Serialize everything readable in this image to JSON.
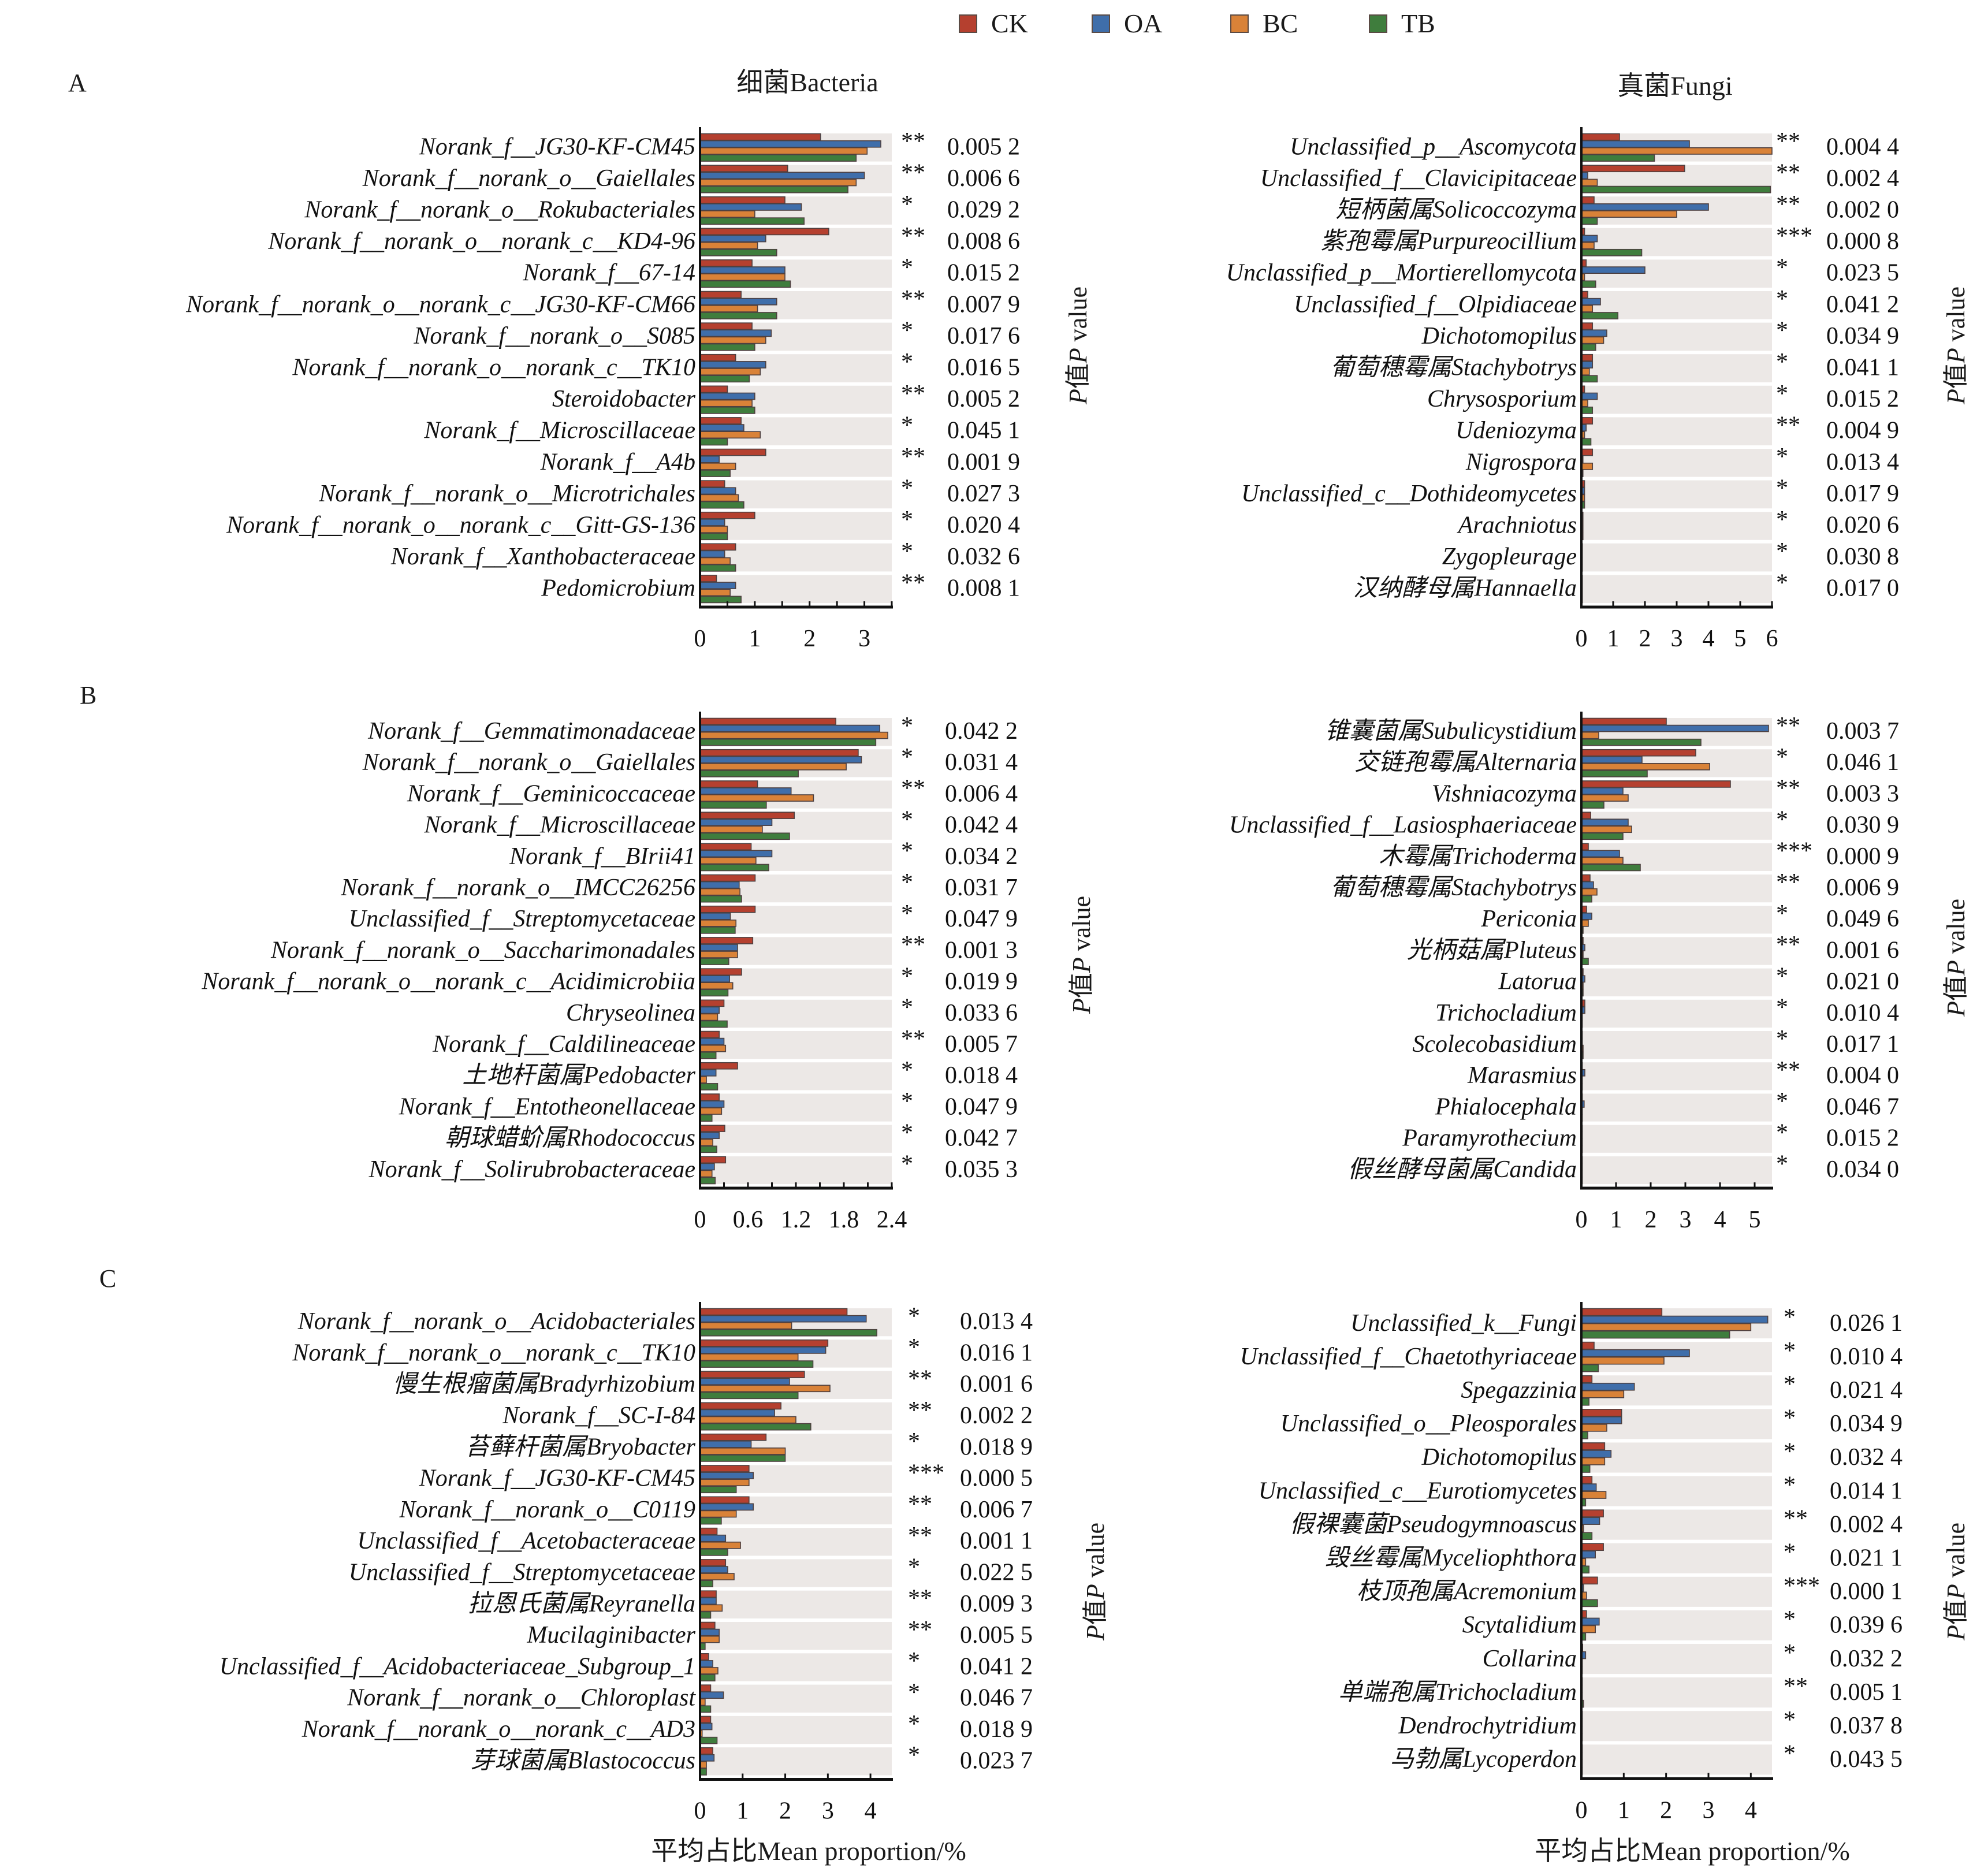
{
  "legend": [
    {
      "name": "CK",
      "color": "#b5402f"
    },
    {
      "name": "OA",
      "color": "#3f6eaa"
    },
    {
      "name": "BC",
      "color": "#d98238"
    },
    {
      "name": "TB",
      "color": "#3f7d3d"
    }
  ],
  "colors": {
    "bar_outline": "#4e4040",
    "row_band": "#ece8e6",
    "axis": "#111111"
  },
  "column_titles": {
    "bacteria": "细菌Bacteria",
    "fungi": "真菌Fungi"
  },
  "panel_letters": [
    "A",
    "B",
    "C"
  ],
  "pvalue_axis_title": {
    "prefix": "P",
    "middle": "值",
    "italic": "P",
    "suffix": " value"
  },
  "xlabel": "平均占比Mean proportion/%",
  "chart_data": [
    {
      "id": "A-bacteria",
      "panel": "A",
      "type": "bar",
      "orientation": "horizontal",
      "title": "细菌Bacteria",
      "xlim": [
        0,
        3.5
      ],
      "xticks": [
        0,
        1,
        2,
        3
      ],
      "minor_tick_step": 0.5,
      "xlabel": "",
      "series_names": [
        "CK",
        "OA",
        "BC",
        "TB"
      ],
      "categories": [
        "Norank_f__JG30-KF-CM45",
        "Norank_f__norank_o__Gaiellales",
        "Norank_f__norank_o__Rokubacteriales",
        "Norank_f__norank_o__norank_c__KD4-96",
        "Norank_f__67-14",
        "Norank_f__norank_o__norank_c__JG30-KF-CM66",
        "Norank_f__norank_o__S085",
        "Norank_f__norank_o__norank_c__TK10",
        "Steroidobacter",
        "Norank_f__Microscillaceae",
        "Norank_f__A4b",
        "Norank_f__norank_o__Microtrichales",
        "Norank_f__norank_o__norank_c__Gitt-GS-136",
        "Norank_f__Xanthobacteraceae",
        "Pedomicrobium"
      ],
      "values": [
        [
          2.2,
          3.3,
          3.05,
          2.85
        ],
        [
          1.6,
          3.0,
          2.85,
          2.7
        ],
        [
          1.55,
          1.85,
          1.0,
          1.9
        ],
        [
          2.35,
          1.2,
          1.05,
          1.4
        ],
        [
          0.95,
          1.55,
          1.55,
          1.65
        ],
        [
          0.75,
          1.4,
          1.05,
          1.4
        ],
        [
          0.95,
          1.3,
          1.2,
          1.0
        ],
        [
          0.65,
          1.2,
          1.1,
          0.9
        ],
        [
          0.5,
          1.0,
          0.95,
          1.0
        ],
        [
          0.75,
          0.8,
          1.1,
          0.5
        ],
        [
          1.2,
          0.35,
          0.65,
          0.55
        ],
        [
          0.45,
          0.65,
          0.7,
          0.8
        ],
        [
          1.0,
          0.45,
          0.5,
          0.5
        ],
        [
          0.65,
          0.45,
          0.55,
          0.65
        ],
        [
          0.3,
          0.65,
          0.55,
          0.75
        ]
      ],
      "significance": [
        "**",
        "**",
        "*",
        "**",
        "*",
        "**",
        "*",
        "*",
        "**",
        "*",
        "**",
        "*",
        "*",
        "*",
        "**"
      ],
      "p_values": [
        "0.005 2",
        "0.006 6",
        "0.029 2",
        "0.008 6",
        "0.015 2",
        "0.007 9",
        "0.017 6",
        "0.016 5",
        "0.005 2",
        "0.045 1",
        "0.001 9",
        "0.027 3",
        "0.020 4",
        "0.032 6",
        "0.008 1"
      ]
    },
    {
      "id": "A-fungi",
      "panel": "A",
      "type": "bar",
      "orientation": "horizontal",
      "title": "真菌Fungi",
      "xlim": [
        0,
        6
      ],
      "xticks": [
        0,
        1,
        2,
        3,
        4,
        5,
        6
      ],
      "minor_tick_step": 1,
      "xlabel": "",
      "series_names": [
        "CK",
        "OA",
        "BC",
        "TB"
      ],
      "categories": [
        "Unclassified_p__Ascomycota",
        "Unclassified_f__Clavicipitaceae",
        "短柄菌属Solicoccozyma",
        "紫孢霉属Purpureocillium",
        "Unclassified_p__Mortierellomycota",
        "Unclassified_f__Olpidiaceae",
        "Dichotomopilus",
        "葡萄穗霉属Stachybotrys",
        "Chrysosporium",
        "Udeniozyma",
        "Nigrospora",
        "Unclassified_c__Dothideomycetes",
        "Arachniotus",
        "Zygopleurage",
        "汉纳酵母属Hannaella"
      ],
      "values": [
        [
          1.2,
          3.4,
          6.0,
          2.3
        ],
        [
          3.25,
          0.2,
          0.5,
          5.95
        ],
        [
          0.4,
          4.0,
          3.0,
          0.5
        ],
        [
          0.1,
          0.5,
          0.4,
          1.9
        ],
        [
          0.15,
          2.0,
          0.1,
          0.45
        ],
        [
          0.2,
          0.6,
          0.35,
          1.15
        ],
        [
          0.35,
          0.8,
          0.7,
          0.45
        ],
        [
          0.35,
          0.35,
          0.25,
          0.5
        ],
        [
          0.1,
          0.5,
          0.2,
          0.35
        ],
        [
          0.35,
          0.15,
          0.1,
          0.3
        ],
        [
          0.35,
          0.05,
          0.35,
          0.05
        ],
        [
          0.1,
          0.1,
          0.1,
          0.1
        ],
        [
          0.05,
          0.05,
          0.05,
          0.05
        ],
        [
          0.03,
          0.03,
          0.03,
          0.03
        ],
        [
          0.03,
          0.03,
          0.03,
          0.03
        ]
      ],
      "significance": [
        "**",
        "**",
        "**",
        "***",
        "*",
        "*",
        "*",
        "*",
        "*",
        "**",
        "*",
        "*",
        "*",
        "*",
        "*"
      ],
      "p_values": [
        "0.004 4",
        "0.002 4",
        "0.002 0",
        "0.000 8",
        "0.023 5",
        "0.041 2",
        "0.034 9",
        "0.041 1",
        "0.015 2",
        "0.004 9",
        "0.013 4",
        "0.017 9",
        "0.020 6",
        "0.030 8",
        "0.017 0"
      ]
    },
    {
      "id": "B-bacteria",
      "panel": "B",
      "type": "bar",
      "orientation": "horizontal",
      "title": "",
      "xlim": [
        0,
        2.4
      ],
      "xticks": [
        0,
        0.6,
        1.2,
        1.8,
        2.4
      ],
      "minor_tick_step": 0.3,
      "xlabel": "",
      "series_names": [
        "CK",
        "OA",
        "BC",
        "TB"
      ],
      "categories": [
        "Norank_f__Gemmatimonadaceae",
        "Norank_f__norank_o__Gaiellales",
        "Norank_f__Geminicoccaceae",
        "Norank_f__Microscillaceae",
        "Norank_f__BIrii41",
        "Norank_f__norank_o__IMCC26256",
        "Unclassified_f__Streptomycetaceae",
        "Norank_f__norank_o__Saccharimonadales",
        "Norank_f__norank_o__norank_c__Acidimicrobiia",
        "Chryseolinea",
        "Norank_f__Caldilineaceae",
        "土地杆菌属Pedobacter",
        "Norank_f__Entotheonellaceae",
        "朝球蜡蚧属Rhodococcus",
        "Norank_f__Solirubrobacteraceae"
      ],
      "values": [
        [
          1.7,
          2.25,
          2.35,
          2.2
        ],
        [
          1.98,
          2.02,
          1.83,
          1.23
        ],
        [
          0.72,
          1.14,
          1.42,
          0.83
        ],
        [
          1.18,
          0.9,
          0.78,
          1.12
        ],
        [
          0.64,
          0.9,
          0.7,
          0.86
        ],
        [
          0.69,
          0.49,
          0.5,
          0.52
        ],
        [
          0.69,
          0.38,
          0.45,
          0.44
        ],
        [
          0.66,
          0.47,
          0.47,
          0.36
        ],
        [
          0.52,
          0.37,
          0.41,
          0.35
        ],
        [
          0.3,
          0.24,
          0.22,
          0.34
        ],
        [
          0.24,
          0.3,
          0.32,
          0.2
        ],
        [
          0.47,
          0.2,
          0.08,
          0.22
        ],
        [
          0.24,
          0.3,
          0.27,
          0.15
        ],
        [
          0.31,
          0.24,
          0.16,
          0.21
        ],
        [
          0.32,
          0.18,
          0.15,
          0.19
        ]
      ],
      "significance": [
        "*",
        "*",
        "**",
        "*",
        "*",
        "*",
        "*",
        "**",
        "*",
        "*",
        "**",
        "*",
        "*",
        "*",
        "*"
      ],
      "p_values": [
        "0.042 2",
        "0.031 4",
        "0.006 4",
        "0.042 4",
        "0.034 2",
        "0.031 7",
        "0.047 9",
        "0.001 3",
        "0.019 9",
        "0.033 6",
        "0.005 7",
        "0.018 4",
        "0.047 9",
        "0.042 7",
        "0.035 3"
      ]
    },
    {
      "id": "B-fungi",
      "panel": "B",
      "type": "bar",
      "orientation": "horizontal",
      "title": "",
      "xlim": [
        0,
        5.5
      ],
      "xticks": [
        0,
        1,
        2,
        3,
        4,
        5
      ],
      "minor_tick_step": 1,
      "xlabel": "",
      "series_names": [
        "CK",
        "OA",
        "BC",
        "TB"
      ],
      "categories": [
        "锥囊菌属Subulicystidium",
        "交链孢霉属Alternaria",
        "Vishniacozyma",
        "Unclassified_f__Lasiosphaeriaceae",
        "木霉属Trichoderma",
        "葡萄穗霉属Stachybotrys",
        "Periconia",
        "光柄菇属Pluteus",
        "Latorua",
        "Trichocladium",
        "Scolecobasidium",
        "Marasmius",
        "Phialocephala",
        "Paramyrothecium",
        "假丝酵母菌属Candida"
      ],
      "values": [
        [
          2.45,
          5.4,
          0.5,
          3.45
        ],
        [
          3.3,
          1.75,
          3.7,
          1.9
        ],
        [
          4.3,
          1.2,
          1.35,
          0.65
        ],
        [
          0.27,
          1.35,
          1.45,
          1.2
        ],
        [
          0.2,
          1.1,
          1.2,
          1.7
        ],
        [
          0.25,
          0.35,
          0.45,
          0.3
        ],
        [
          0.15,
          0.3,
          0.2,
          0.05
        ],
        [
          0.05,
          0.1,
          0.05,
          0.2
        ],
        [
          0.05,
          0.1,
          0.05,
          0.05
        ],
        [
          0.1,
          0.1,
          0.02,
          0.02
        ],
        [
          0.02,
          0.02,
          0.05,
          0.05
        ],
        [
          0.02,
          0.1,
          0.02,
          0.02
        ],
        [
          0.02,
          0.08,
          0.02,
          0.02
        ],
        [
          0.02,
          0.02,
          0.02,
          0.02
        ],
        [
          0.02,
          0.02,
          0.02,
          0.02
        ]
      ],
      "significance": [
        "**",
        "*",
        "**",
        "*",
        "***",
        "**",
        "*",
        "**",
        "*",
        "*",
        "*",
        "**",
        "*",
        "*",
        "*"
      ],
      "p_values": [
        "0.003 7",
        "0.046 1",
        "0.003 3",
        "0.030 9",
        "0.000 9",
        "0.006 9",
        "0.049 6",
        "0.001 6",
        "0.021 0",
        "0.010 4",
        "0.017 1",
        "0.004 0",
        "0.046 7",
        "0.015 2",
        "0.034 0"
      ]
    },
    {
      "id": "C-bacteria",
      "panel": "C",
      "type": "bar",
      "orientation": "horizontal",
      "title": "",
      "xlim": [
        0,
        4.5
      ],
      "xticks": [
        0,
        1,
        2,
        3,
        4
      ],
      "minor_tick_step": 1,
      "xlabel": "平均占比Mean proportion/%",
      "series_names": [
        "CK",
        "OA",
        "BC",
        "TB"
      ],
      "categories": [
        "Norank_f__norank_o__Acidobacteriales",
        "Norank_f__norank_o__norank_c__TK10",
        "慢生根瘤菌属Bradyrhizobium",
        "Norank_f__SC-I-84",
        "苔藓杆菌属Bryobacter",
        "Norank_f__JG30-KF-CM45",
        "Norank_f__norank_o__C0119",
        "Unclassified_f__Acetobacteraceae",
        "Unclassified_f__Streptomycetaceae",
        "拉恩氏菌属Reyranella",
        "Mucilaginibacter",
        "Unclassified_f__Acidobacteriaceae_Subgroup_1",
        "Norank_f__norank_o__Chloroplast",
        "Norank_f__norank_o__norank_c__AD3",
        "芽球菌属Blastococcus"
      ],
      "values": [
        [
          3.45,
          3.9,
          2.15,
          4.15
        ],
        [
          3.0,
          2.95,
          2.3,
          2.65
        ],
        [
          2.45,
          2.1,
          3.05,
          2.3
        ],
        [
          1.9,
          1.75,
          2.25,
          2.6
        ],
        [
          1.55,
          1.2,
          2.0,
          2.0
        ],
        [
          1.15,
          1.25,
          1.15,
          0.85
        ],
        [
          1.15,
          1.25,
          0.85,
          0.5
        ],
        [
          0.4,
          0.6,
          0.95,
          0.65
        ],
        [
          0.6,
          0.65,
          0.8,
          0.3
        ],
        [
          0.38,
          0.38,
          0.52,
          0.25
        ],
        [
          0.35,
          0.45,
          0.45,
          0.12
        ],
        [
          0.2,
          0.3,
          0.42,
          0.35
        ],
        [
          0.25,
          0.55,
          0.12,
          0.25
        ],
        [
          0.25,
          0.28,
          0.05,
          0.4
        ],
        [
          0.3,
          0.33,
          0.15,
          0.15
        ]
      ],
      "significance": [
        "*",
        "*",
        "**",
        "**",
        "*",
        "***",
        "**",
        "**",
        "*",
        "**",
        "**",
        "*",
        "*",
        "*",
        "*"
      ],
      "p_values": [
        "0.013 4",
        "0.016 1",
        "0.001 6",
        "0.002 2",
        "0.018 9",
        "0.000 5",
        "0.006 7",
        "0.001 1",
        "0.022 5",
        "0.009 3",
        "0.005 5",
        "0.041 2",
        "0.046 7",
        "0.018 9",
        "0.023 7"
      ]
    },
    {
      "id": "C-fungi",
      "panel": "C",
      "type": "bar",
      "orientation": "horizontal",
      "title": "",
      "xlim": [
        0,
        4.5
      ],
      "xticks": [
        0,
        1,
        2,
        3,
        4
      ],
      "minor_tick_step": 1,
      "xlabel": "平均占比Mean proportion/%",
      "series_names": [
        "CK",
        "OA",
        "BC",
        "TB"
      ],
      "categories": [
        "Unclassified_k__Fungi",
        "Unclassified_f__Chaetothyriaceae",
        "Spegazzinia",
        "Unclassified_o__Pleosporales",
        "Dichotomopilus",
        "Unclassified_c__Eurotiomycetes",
        "假裸囊菌Pseudogymnoascus",
        "毁丝霉属Myceliophthora",
        "枝顶孢属Acremonium",
        "Scytalidium",
        "Collarina",
        "单端孢属Trichocladium",
        "Dendrochytridium",
        "马勃属Lycoperdon"
      ],
      "values": [
        [
          1.9,
          4.4,
          4.0,
          3.5
        ],
        [
          0.3,
          2.55,
          1.95,
          0.4
        ],
        [
          0.25,
          1.25,
          1.0,
          0.18
        ],
        [
          0.95,
          0.95,
          0.6,
          0.15
        ],
        [
          0.55,
          0.7,
          0.55,
          0.2
        ],
        [
          0.25,
          0.35,
          0.58,
          0.1
        ],
        [
          0.52,
          0.43,
          0.05,
          0.25
        ],
        [
          0.52,
          0.33,
          0.1,
          0.18
        ],
        [
          0.38,
          0.05,
          0.12,
          0.38
        ],
        [
          0.12,
          0.42,
          0.33,
          0.1
        ],
        [
          0.03,
          0.1,
          0.02,
          0.02
        ],
        [
          0.02,
          0.02,
          0.02,
          0.05
        ],
        [
          0.01,
          0.02,
          0.02,
          0.01
        ],
        [
          0.01,
          0.01,
          0.01,
          0.01
        ]
      ],
      "significance": [
        "*",
        "*",
        "*",
        "*",
        "*",
        "*",
        "**",
        "*",
        "***",
        "*",
        "*",
        "**",
        "*",
        "*"
      ],
      "p_values": [
        "0.026 1",
        "0.010 4",
        "0.021 4",
        "0.034 9",
        "0.032 4",
        "0.014 1",
        "0.002 4",
        "0.021 1",
        "0.000 1",
        "0.039 6",
        "0.032 2",
        "0.005 1",
        "0.037 8",
        "0.043 5"
      ]
    }
  ]
}
